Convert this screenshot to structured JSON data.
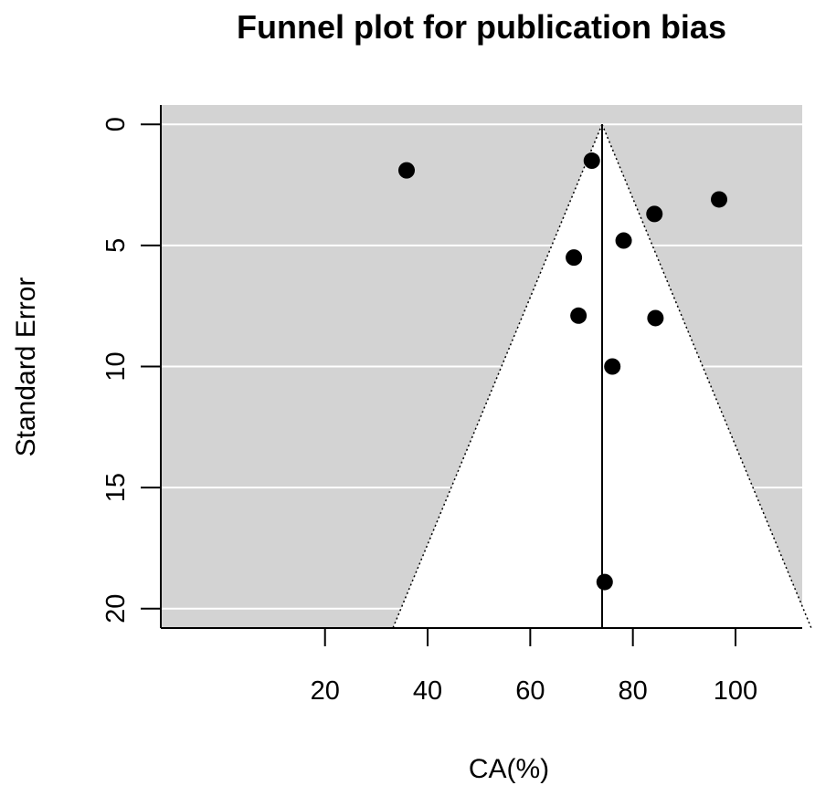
{
  "chart_data": {
    "type": "scatter",
    "title": "Funnel plot for publication bias",
    "xlabel": "CA(%)",
    "ylabel": "Standard Error",
    "xlim": [
      -12,
      113
    ],
    "ylim": [
      20.8,
      -0.8
    ],
    "y_reversed": true,
    "x_ticks": [
      20,
      40,
      60,
      80,
      100
    ],
    "y_ticks": [
      0,
      5,
      10,
      15,
      20
    ],
    "grid": "horizontal",
    "background": "#d3d3d3",
    "funnel": {
      "center": 74,
      "se_max": 20.8,
      "region_color": "#ffffff"
    },
    "points": [
      {
        "x": 35.9,
        "y": 1.9
      },
      {
        "x": 72.0,
        "y": 1.5
      },
      {
        "x": 96.8,
        "y": 3.1
      },
      {
        "x": 84.2,
        "y": 3.7
      },
      {
        "x": 78.2,
        "y": 4.8
      },
      {
        "x": 68.5,
        "y": 5.5
      },
      {
        "x": 69.4,
        "y": 7.9
      },
      {
        "x": 84.4,
        "y": 8.0
      },
      {
        "x": 76.0,
        "y": 10.0
      },
      {
        "x": 74.5,
        "y": 18.9
      }
    ]
  }
}
